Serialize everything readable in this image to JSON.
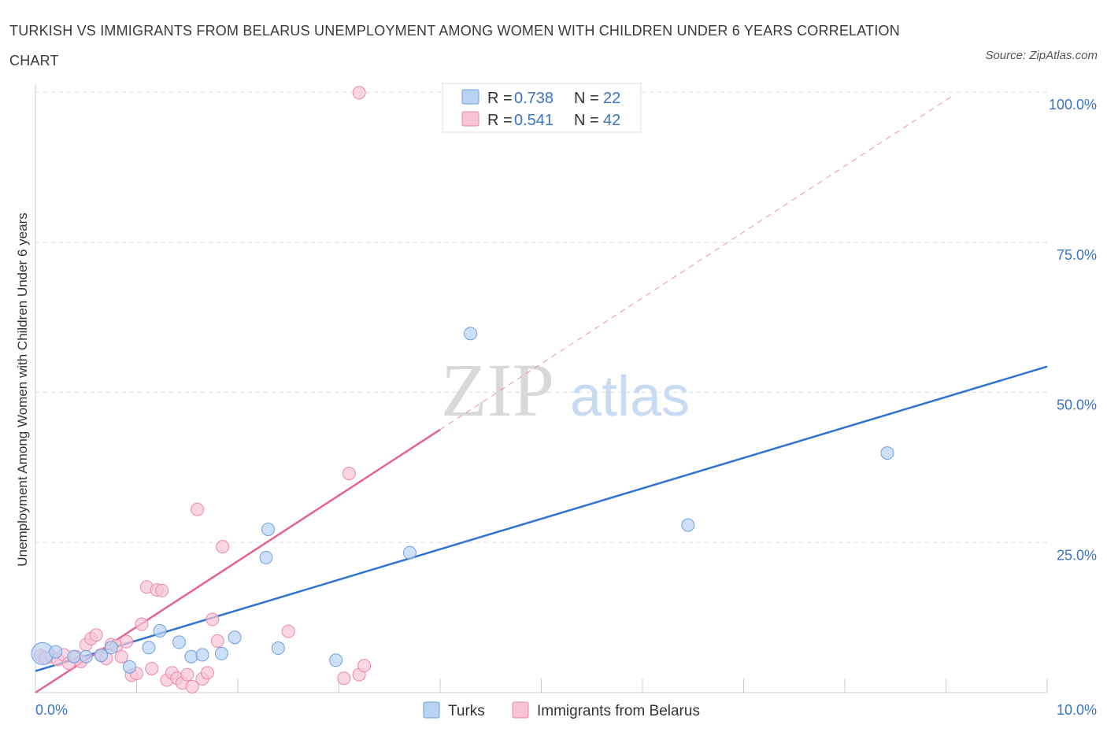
{
  "title": "TURKISH VS IMMIGRANTS FROM BELARUS UNEMPLOYMENT AMONG WOMEN WITH CHILDREN UNDER 6 YEARS CORRELATION CHART",
  "source": "Source: ZipAtlas.com",
  "watermark": {
    "zip": "ZIP",
    "atlas": "atlas"
  },
  "colors": {
    "turks_fill": "#b9d3f5",
    "turks_stroke": "#6f9fdc",
    "turks_line": "#2f74d0",
    "belarus_fill": "#f8c4d4",
    "belarus_stroke": "#ea89a9",
    "belarus_line": "#e8628e",
    "tick_text": "#3b73c5",
    "grid": "#dddddd"
  },
  "legend": {
    "r_label": "R =",
    "n_label": "N =",
    "turks": {
      "r": "0.738",
      "n": "22"
    },
    "belarus": {
      "r": "0.541",
      "n": "42"
    }
  },
  "chart_data": {
    "type": "scatter",
    "xlabel": "",
    "ylabel": "Unemployment Among Women with Children Under 6 years",
    "xlim": [
      0,
      10
    ],
    "ylim": [
      0,
      100
    ],
    "x_tick_labels": [
      "0.0%",
      "10.0%"
    ],
    "y_tick_labels": [
      "25.0%",
      "50.0%",
      "75.0%",
      "100.0%"
    ],
    "y_tick_values": [
      25,
      50,
      75,
      100
    ],
    "grid": true,
    "legend_position": "top-center",
    "series": [
      {
        "name": "Turks",
        "points": [
          [
            0.07,
            6.5
          ],
          [
            0.2,
            6.8
          ],
          [
            0.38,
            6.0
          ],
          [
            0.5,
            6.0
          ],
          [
            0.65,
            6.2
          ],
          [
            0.75,
            7.5
          ],
          [
            0.93,
            4.3
          ],
          [
            1.12,
            7.5
          ],
          [
            1.23,
            10.3
          ],
          [
            1.42,
            8.4
          ],
          [
            1.54,
            6.0
          ],
          [
            1.65,
            6.3
          ],
          [
            1.84,
            6.5
          ],
          [
            1.97,
            9.2
          ],
          [
            2.28,
            22.5
          ],
          [
            2.3,
            27.2
          ],
          [
            2.4,
            7.4
          ],
          [
            2.97,
            5.4
          ],
          [
            3.7,
            23.3
          ],
          [
            4.3,
            59.8
          ],
          [
            6.45,
            27.9
          ],
          [
            8.42,
            39.9
          ]
        ],
        "trend": {
          "x": [
            0,
            10
          ],
          "y": [
            3.6,
            54.3
          ]
        }
      },
      {
        "name": "Immigrants from Belarus",
        "points": [
          [
            0.05,
            6.2
          ],
          [
            0.1,
            5.8
          ],
          [
            0.16,
            6.0
          ],
          [
            0.22,
            5.5
          ],
          [
            0.28,
            6.3
          ],
          [
            0.33,
            4.9
          ],
          [
            0.4,
            6.0
          ],
          [
            0.45,
            5.2
          ],
          [
            0.5,
            8.0
          ],
          [
            0.55,
            9.0
          ],
          [
            0.6,
            9.6
          ],
          [
            0.65,
            6.3
          ],
          [
            0.7,
            5.7
          ],
          [
            0.75,
            8.0
          ],
          [
            0.8,
            7.8
          ],
          [
            0.85,
            6.0
          ],
          [
            0.9,
            8.5
          ],
          [
            0.95,
            2.9
          ],
          [
            1.0,
            3.2
          ],
          [
            1.05,
            11.4
          ],
          [
            1.1,
            17.6
          ],
          [
            1.15,
            4.0
          ],
          [
            1.2,
            17.1
          ],
          [
            1.25,
            17.0
          ],
          [
            1.3,
            2.1
          ],
          [
            1.35,
            3.3
          ],
          [
            1.4,
            2.4
          ],
          [
            1.45,
            1.6
          ],
          [
            1.5,
            3.0
          ],
          [
            1.55,
            1.0
          ],
          [
            1.6,
            30.5
          ],
          [
            1.65,
            2.3
          ],
          [
            1.7,
            3.3
          ],
          [
            1.75,
            12.2
          ],
          [
            1.8,
            8.6
          ],
          [
            1.85,
            24.3
          ],
          [
            2.5,
            10.2
          ],
          [
            3.05,
            2.4
          ],
          [
            3.1,
            36.5
          ],
          [
            3.2,
            3.0
          ],
          [
            3.25,
            4.5
          ],
          [
            3.2,
            99.9
          ]
        ],
        "trend": {
          "x": [
            0,
            4.0
          ],
          "y": [
            0,
            43.8
          ]
        },
        "trend_extension": {
          "x": [
            4.0,
            9.05
          ],
          "y": [
            43.8,
            99.2
          ]
        }
      }
    ]
  },
  "bottom_legend": {
    "turks": "Turks",
    "belarus": "Immigrants from Belarus"
  }
}
